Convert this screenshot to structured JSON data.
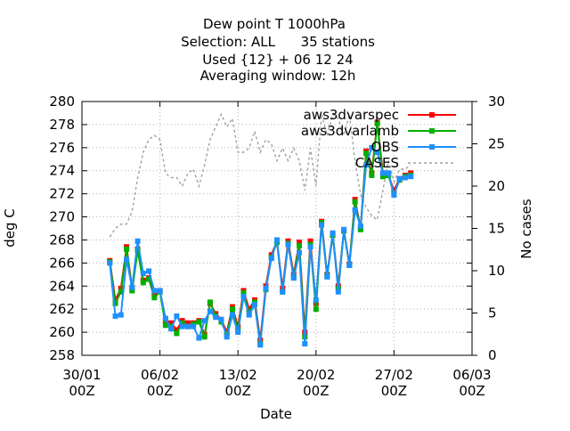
{
  "chart_data": {
    "type": "line",
    "title_lines": [
      "Dew point T 1000hPa",
      "Selection: ALL      35 stations",
      "Used {12} + 06 12 24",
      "Averaging window: 12h"
    ],
    "xlabel": "Date",
    "ylabel": "deg C",
    "y2label": "No cases",
    "ylim": [
      258,
      280
    ],
    "y2lim": [
      0,
      30
    ],
    "xlim": [
      "2017-01-30 00Z",
      "2017-03-06 00Z"
    ],
    "x_ticks": [
      {
        "day": 0,
        "line1": "30/01",
        "line2": "00Z"
      },
      {
        "day": 7,
        "line1": "06/02",
        "line2": "00Z"
      },
      {
        "day": 14,
        "line1": "13/02",
        "line2": "00Z"
      },
      {
        "day": 21,
        "line1": "20/02",
        "line2": "00Z"
      },
      {
        "day": 28,
        "line1": "27/02",
        "line2": "00Z"
      },
      {
        "day": 35,
        "line1": "06/03",
        "line2": "00Z"
      }
    ],
    "y_ticks": [
      258,
      260,
      262,
      264,
      266,
      268,
      270,
      272,
      274,
      276,
      278,
      280
    ],
    "y2_ticks": [
      0,
      5,
      10,
      15,
      20,
      25,
      30
    ],
    "grid": true,
    "legend_position": "top-right",
    "x_days_from_30_01": [
      2.5,
      3.0,
      3.5,
      4.0,
      4.5,
      5.0,
      5.5,
      6.0,
      6.5,
      7.0,
      7.5,
      8.0,
      8.5,
      9.0,
      9.5,
      10.0,
      10.5,
      11.0,
      11.5,
      12.0,
      12.5,
      13.0,
      13.5,
      14.0,
      14.5,
      15.0,
      15.5,
      16.0,
      16.5,
      17.0,
      17.5,
      18.0,
      18.5,
      19.0,
      19.5,
      20.0,
      20.5,
      21.0,
      21.5,
      22.0,
      22.5,
      23.0,
      23.5,
      24.0,
      24.5,
      25.0,
      25.5,
      26.0,
      26.5,
      27.0,
      27.5,
      28.0,
      28.5,
      29.0,
      29.5
    ],
    "series": [
      {
        "name": "aws3dvarspec",
        "color": "#ff0000",
        "axis": "left",
        "values": [
          266.2,
          262.8,
          263.8,
          267.4,
          263.8,
          267.2,
          264.5,
          264.7,
          263.3,
          263.6,
          261.0,
          260.8,
          260.2,
          261.0,
          260.8,
          260.8,
          261.0,
          259.8,
          262.5,
          261.6,
          261.1,
          260.0,
          262.2,
          260.5,
          263.6,
          262.0,
          262.8,
          259.3,
          264.0,
          266.7,
          267.9,
          263.8,
          267.9,
          265.0,
          267.8,
          260.0,
          267.9,
          262.5,
          269.6,
          265.0,
          268.5,
          264.0,
          268.8,
          265.9,
          271.5,
          269.0,
          275.7,
          273.8,
          278.2,
          273.8,
          273.6,
          272.3,
          273.3,
          273.6,
          273.8
        ]
      },
      {
        "name": "aws3dvarlamb",
        "color": "#00b000",
        "axis": "left",
        "values": [
          266.1,
          262.5,
          263.5,
          267.2,
          263.6,
          267.1,
          264.3,
          264.6,
          263.0,
          263.5,
          260.6,
          260.5,
          259.9,
          260.8,
          260.5,
          260.7,
          260.9,
          259.6,
          262.6,
          261.4,
          260.9,
          259.8,
          262.0,
          260.2,
          263.4,
          261.7,
          262.6,
          259.0,
          263.7,
          266.5,
          267.8,
          263.5,
          267.7,
          264.8,
          267.5,
          259.6,
          267.6,
          262.0,
          269.5,
          264.9,
          268.4,
          263.8,
          268.8,
          265.8,
          271.3,
          268.9,
          275.5,
          273.6,
          278.1,
          273.5,
          273.6,
          272.0,
          273.2,
          273.5,
          273.6
        ]
      },
      {
        "name": "OBS",
        "color": "#1e90ff",
        "axis": "left",
        "values": [
          266.0,
          261.4,
          261.5,
          266.3,
          263.9,
          267.9,
          265.1,
          265.3,
          263.6,
          263.6,
          261.2,
          260.3,
          261.4,
          260.5,
          260.5,
          260.5,
          259.5,
          261.0,
          261.8,
          261.3,
          261.1,
          259.6,
          261.5,
          260.0,
          263.1,
          261.5,
          262.4,
          258.9,
          263.8,
          266.4,
          268.0,
          263.5,
          267.6,
          264.7,
          266.9,
          259.0,
          267.4,
          262.8,
          269.3,
          264.8,
          268.6,
          263.5,
          268.9,
          265.8,
          270.6,
          269.2,
          274.5,
          276.0,
          275.6,
          273.8,
          273.8,
          271.9,
          273.3,
          273.4,
          273.5
        ]
      },
      {
        "name": "CASES",
        "color": "#a0a0a0",
        "axis": "right",
        "values": [
          14.0,
          15.0,
          15.5,
          15.5,
          17.0,
          21.0,
          24.0,
          25.5,
          26.0,
          25.5,
          21.5,
          21.0,
          21.0,
          20.0,
          21.5,
          22.0,
          20.0,
          22.5,
          25.5,
          27.0,
          28.5,
          27.0,
          28.0,
          24.0,
          24.0,
          24.5,
          26.5,
          24.0,
          25.5,
          25.0,
          23.0,
          24.5,
          23.0,
          24.5,
          23.0,
          19.5,
          24.5,
          20.0,
          28.5,
          26.0,
          28.5,
          28.0,
          26.0,
          28.5,
          23.0,
          19.0,
          17.5,
          16.5,
          16.0,
          19.5,
          23.0,
          20.5,
          22.0,
          22.0,
          22.5
        ]
      }
    ]
  }
}
